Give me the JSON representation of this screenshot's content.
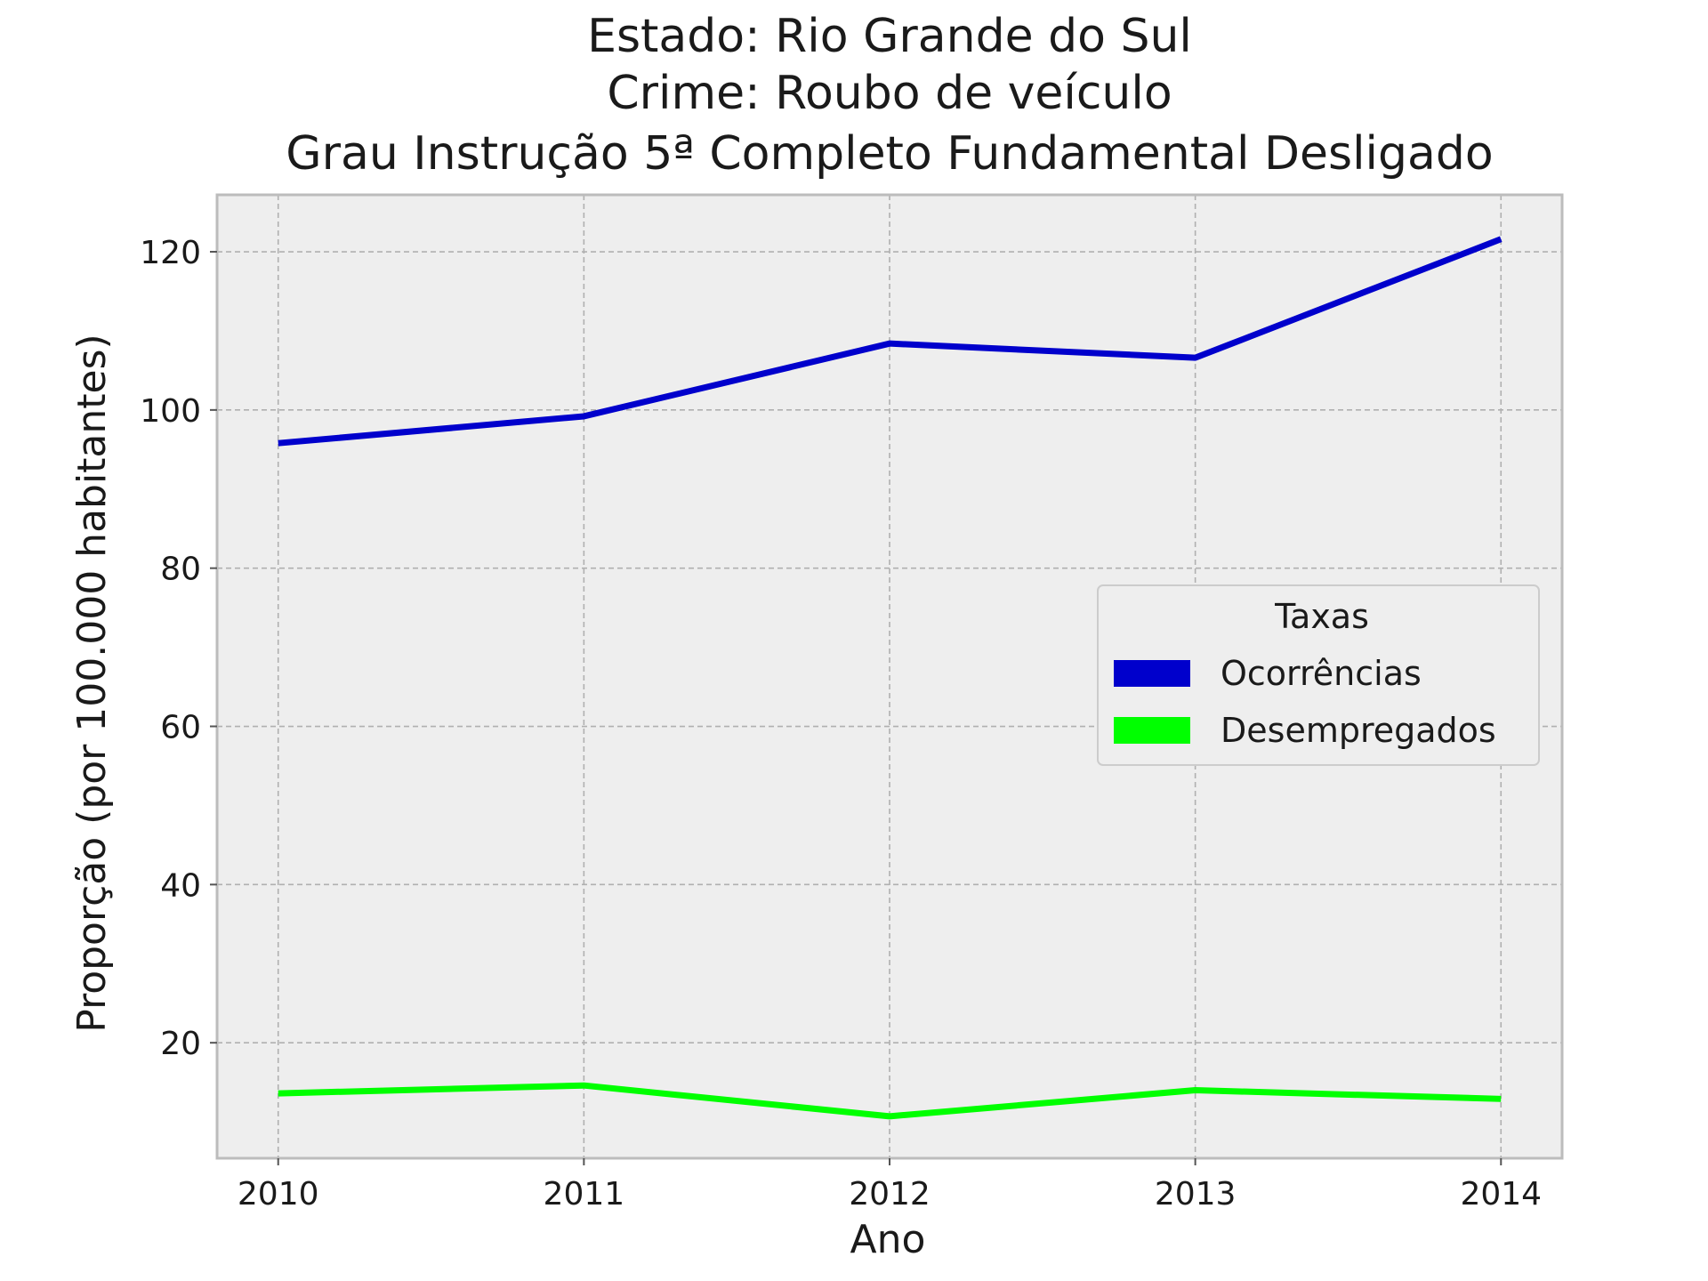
{
  "colors": {
    "background": "#ffffff",
    "plot_background": "#eeeeee",
    "grid": "#b0b0b0",
    "frame": "#bcbcbc"
  },
  "chart_data": {
    "type": "line",
    "title_lines": [
      "Estado: Rio Grande do Sul",
      "Crime: Roubo de veículo",
      "Grau Instrução  5ª Completo Fundamental   Desligado"
    ],
    "xlabel": "Ano",
    "ylabel": "Proporção (por 100.000 habitantes)",
    "x": [
      2010,
      2011,
      2012,
      2013,
      2014
    ],
    "x_tick_labels": [
      "2010",
      "2011",
      "2012",
      "2013",
      "2014"
    ],
    "xlim": [
      2009.8,
      2014.2
    ],
    "y_ticks": [
      20,
      40,
      60,
      80,
      100,
      120
    ],
    "y_tick_labels": [
      "20",
      "40",
      "60",
      "80",
      "100",
      "120"
    ],
    "ylim": [
      5.4,
      127.2
    ],
    "grid": true,
    "legend": {
      "title": "Taxas",
      "placement": "center-right"
    },
    "series": [
      {
        "name": "Ocorrências",
        "color": "#0000cc",
        "values": [
          95.8,
          99.2,
          108.4,
          106.6,
          121.6
        ]
      },
      {
        "name": "Desempregados",
        "color": "#00ff00",
        "values": [
          13.6,
          14.6,
          10.7,
          14.0,
          12.9
        ]
      }
    ]
  }
}
